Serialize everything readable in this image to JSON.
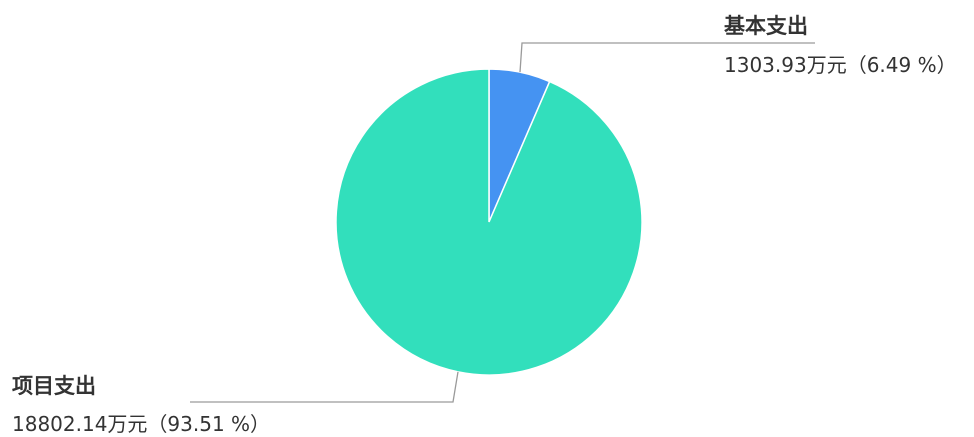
{
  "chart_data": {
    "type": "pie",
    "start_angle_deg": 90,
    "direction": "clockwise",
    "slices": [
      {
        "name": "基本支出",
        "value": 1303.93,
        "unit": "万元",
        "percent_label": "6.49 %",
        "color": "#4593F2"
      },
      {
        "name": "项目支出",
        "value": 18802.14,
        "unit": "万元",
        "percent_label": "93.51 %",
        "color": "#32DFBC"
      }
    ]
  }
}
